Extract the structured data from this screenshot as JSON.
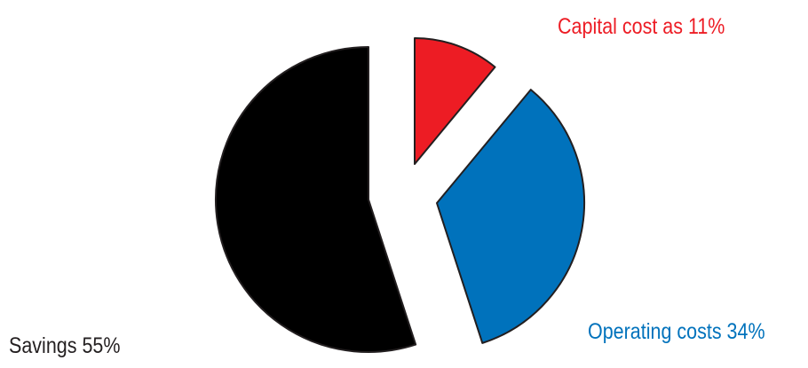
{
  "chart_data": {
    "type": "pie",
    "exploded": true,
    "slices": [
      {
        "label": "Capital cost as 11%",
        "value": 11,
        "color": "#ed1c24"
      },
      {
        "label": "Operating costs 34%",
        "value": 34,
        "color": "#0072bc"
      },
      {
        "label": "Savings 55%",
        "value": 55,
        "color": "#000000"
      }
    ],
    "outline_color": "#231f20"
  }
}
